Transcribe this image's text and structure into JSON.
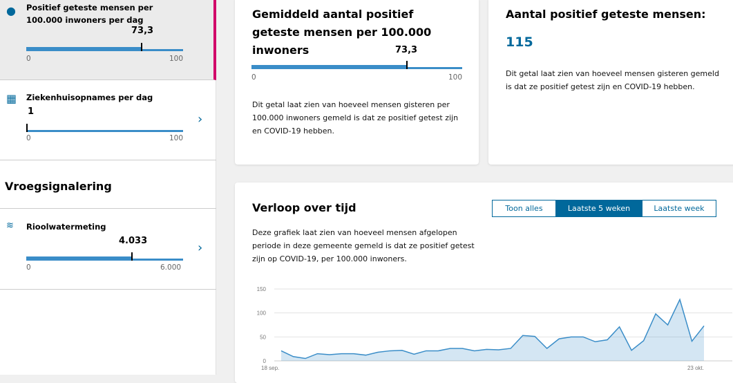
{
  "sidebar": {
    "items": [
      {
        "title": "Positief geteste mensen per 100.000 inwoners per dag",
        "value": "73,3",
        "min": "0",
        "max": "100",
        "fraction": 0.733,
        "icon": "person-test-icon",
        "selected": true
      },
      {
        "title": "Ziekenhuisopnames per dag",
        "value": "1",
        "min": "0",
        "max": "100",
        "fraction": 0.01,
        "icon": "hospital-icon"
      },
      {
        "title": "Rioolwatermeting",
        "value": "4.033",
        "min": "0",
        "max": "6.000",
        "fraction": 0.672,
        "icon": "sewage-water-icon"
      }
    ],
    "section_title": "Vroegsignalering",
    "accent": "#d10069"
  },
  "card_average": {
    "title": "Gemiddeld aantal positief geteste mensen per 100.000 inwoners",
    "value": "73,3",
    "min": "0",
    "max": "100",
    "fraction": 0.733,
    "text": "Dit getal laat zien van hoeveel mensen gisteren per 100.000 inwoners gemeld is dat ze positief getest zijn en COVID-19 hebben."
  },
  "card_total": {
    "title": "Aantal positief geteste mensen:",
    "value": "115",
    "text": "Dit getal laat zien van hoeveel mensen gisteren gemeld is dat ze positief getest zijn en COVID-19 hebben."
  },
  "chart_card": {
    "title": "Verloop over tijd",
    "tabs": [
      "Toon alles",
      "Laatste 5 weken",
      "Laatste week"
    ],
    "active_tab": 1,
    "text": "Deze grafiek laat zien van hoeveel mensen afgelopen periode in deze gemeente gemeld is dat ze positief getest zijn op COVID-19, per 100.000 inwoners."
  },
  "chart_data": {
    "type": "area",
    "x_start": "18 sep.",
    "x_end": "23 okt.",
    "x_tick_labels": [
      "18 sep.",
      "23 okt."
    ],
    "y_ticks": [
      0,
      50,
      100,
      150
    ],
    "ylim": [
      0,
      150
    ],
    "grid": true,
    "color": "#3a8dc8",
    "values": [
      21,
      9,
      5,
      15,
      13,
      15,
      15,
      12,
      18,
      21,
      22,
      14,
      21,
      21,
      26,
      26,
      21,
      24,
      23,
      26,
      53,
      51,
      26,
      46,
      50,
      50,
      40,
      44,
      71,
      22,
      42,
      98,
      75,
      128,
      41,
      73
    ]
  }
}
